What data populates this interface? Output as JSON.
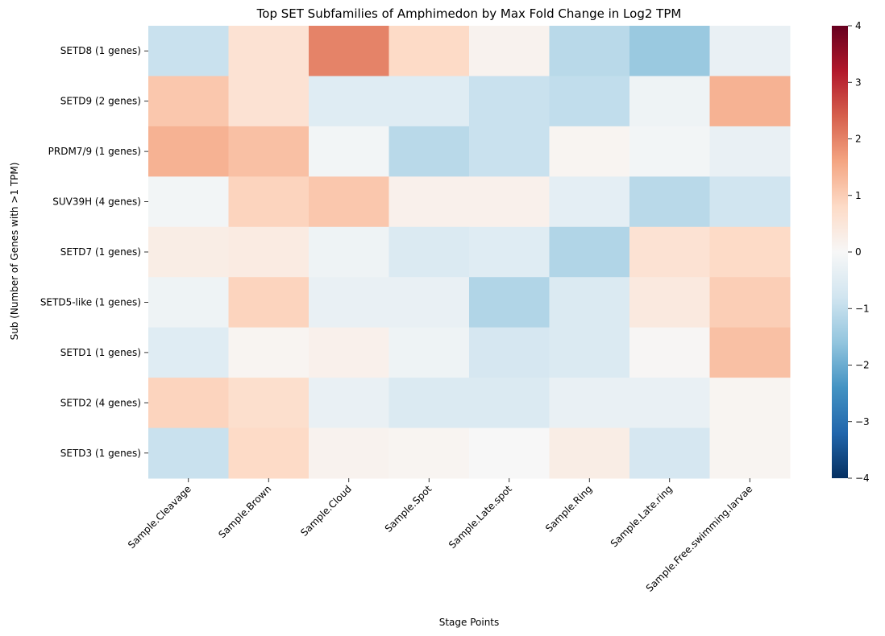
{
  "chart_data": {
    "type": "heatmap",
    "title": "Top SET Subfamilies of Amphimedon by Max Fold Change in Log2 TPM",
    "xlabel": "Stage Points",
    "ylabel": "Sub (Number of Genes with >1 TPM)",
    "columns": [
      "Sample.Cleavage",
      "Sample.Brown",
      "Sample.Cloud",
      "Sample.Spot",
      "Sample.Late.spot",
      "Sample.Ring",
      "Sample.Late.ring",
      "Sample.Free.swimming.larvae"
    ],
    "rows": [
      "SETD8 (1 genes)",
      "SETD9 (2 genes)",
      "PRDM7/9 (1 genes)",
      "SUV39H (4 genes)",
      "SETD7 (1 genes)",
      "SETD5-like (1 genes)",
      "SETD1 (1 genes)",
      "SETD2 (4 genes)",
      "SETD3 (1 genes)"
    ],
    "values": [
      [
        -0.9,
        0.6,
        2.0,
        0.8,
        0.15,
        -1.1,
        -1.5,
        -0.3
      ],
      [
        1.1,
        0.6,
        -0.5,
        -0.5,
        -0.9,
        -1.0,
        -0.2,
        1.4
      ],
      [
        1.4,
        1.2,
        -0.1,
        -1.1,
        -0.9,
        0.1,
        -0.1,
        -0.3
      ],
      [
        -0.1,
        0.9,
        1.1,
        0.2,
        0.2,
        -0.4,
        -1.1,
        -0.8
      ],
      [
        0.3,
        0.35,
        -0.2,
        -0.6,
        -0.5,
        -1.2,
        0.6,
        0.8
      ],
      [
        -0.2,
        0.9,
        -0.3,
        -0.3,
        -1.2,
        -0.6,
        0.4,
        1.0
      ],
      [
        -0.5,
        0.1,
        0.2,
        -0.2,
        -0.7,
        -0.6,
        0.05,
        1.2
      ],
      [
        0.9,
        0.7,
        -0.3,
        -0.6,
        -0.6,
        -0.3,
        -0.3,
        0.1
      ],
      [
        -0.9,
        0.8,
        0.15,
        0.1,
        0.0,
        0.3,
        -0.7,
        0.1
      ]
    ],
    "colorbar": {
      "colormap": "RdBu_r",
      "vmin": -4,
      "vmax": 4,
      "ticks": [
        "4",
        "3",
        "2",
        "1",
        "0",
        "−1",
        "−2",
        "−3",
        "−4"
      ]
    }
  }
}
